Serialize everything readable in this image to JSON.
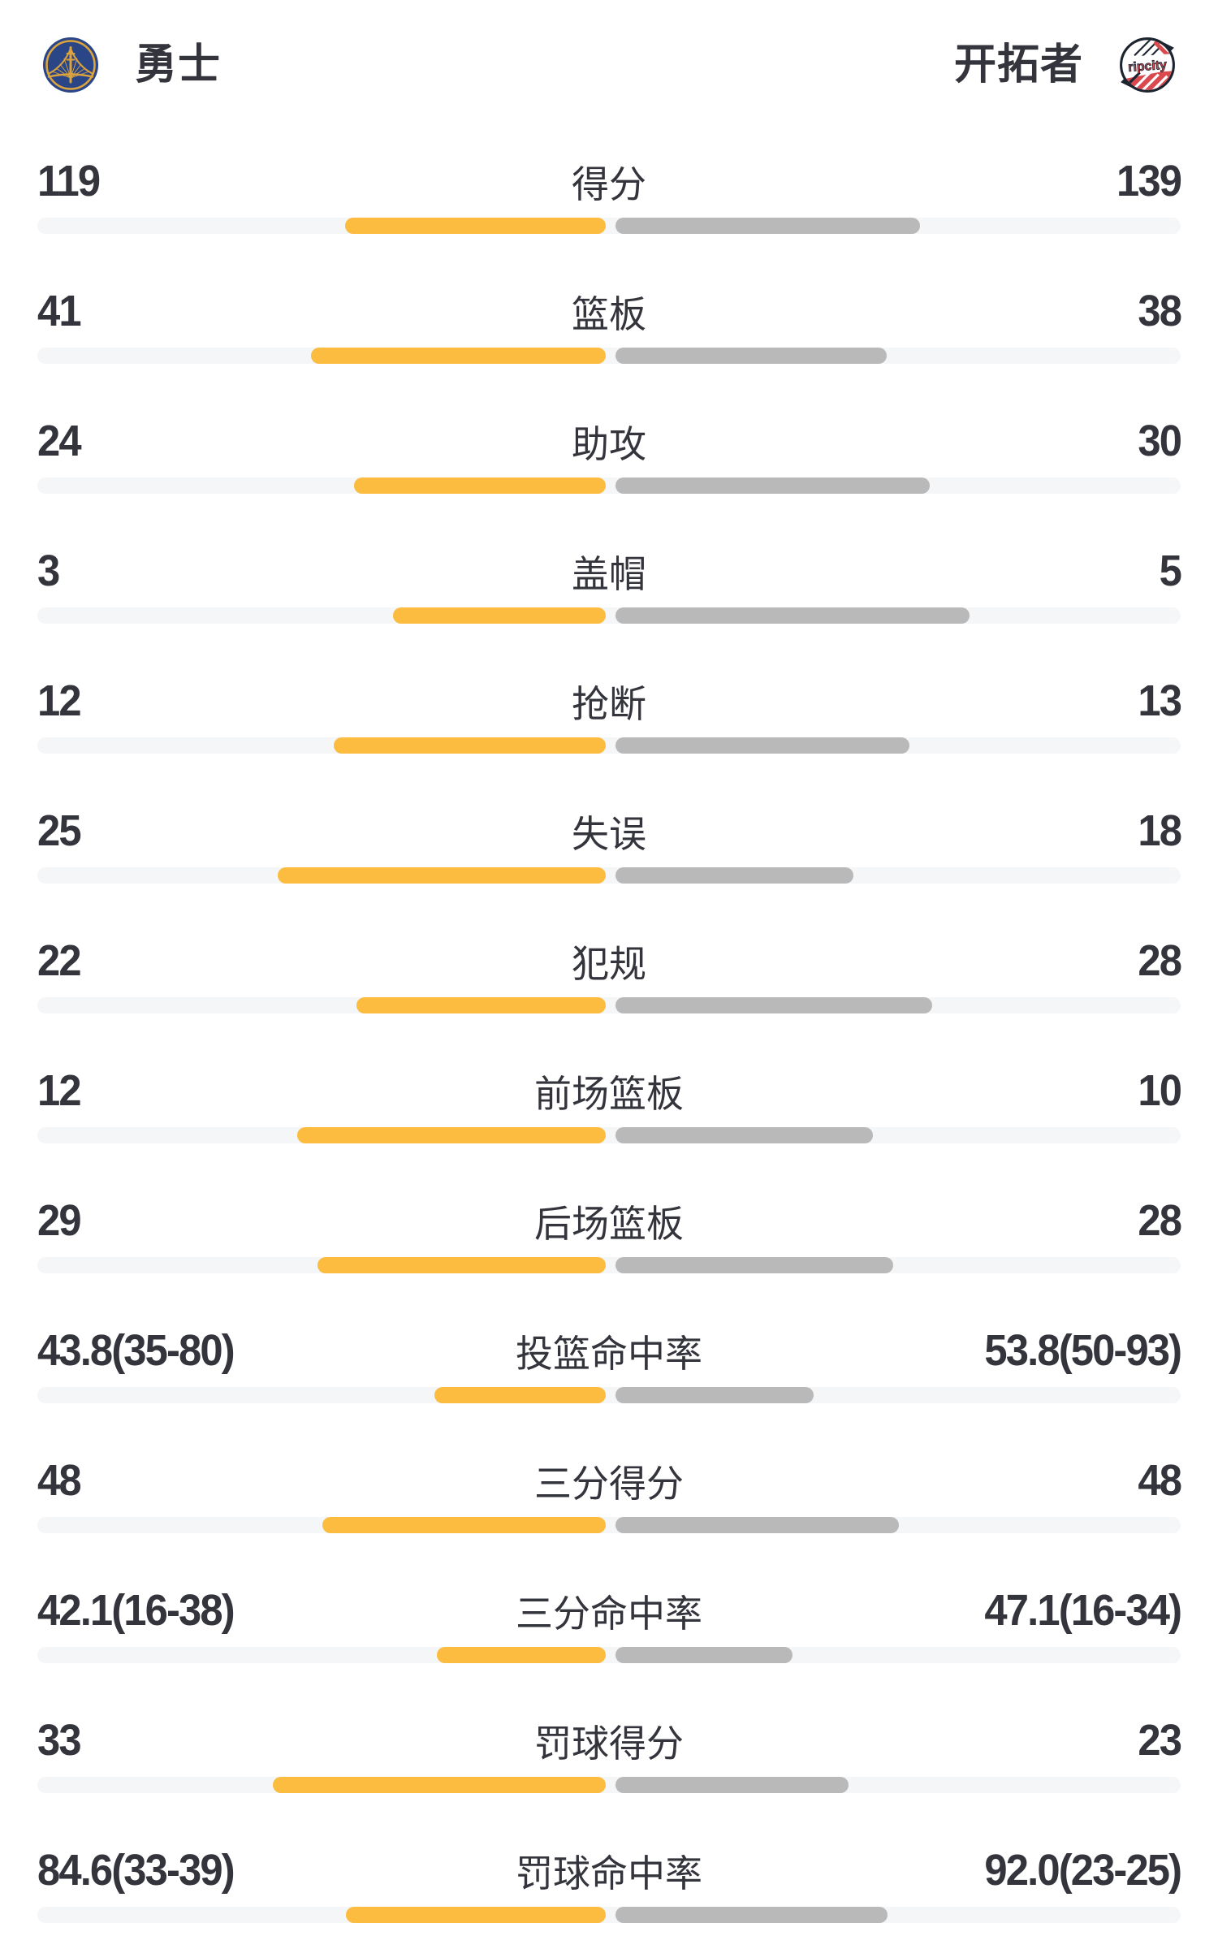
{
  "header": {
    "left_team": {
      "name": "勇士"
    },
    "right_team": {
      "name": "开拓者",
      "logo_text": "ripcity"
    }
  },
  "colors": {
    "text": "#33343c",
    "left_bar": "#fbbc3f",
    "right_bar": "#b9b9b9",
    "track": "#f5f6f8",
    "warriors_navy": "#2a4686",
    "warriors_gold": "#dda43e",
    "blazers_red": "#d9494d",
    "blazers_dark": "#1c2430"
  },
  "chart_data": {
    "type": "bar",
    "orientation": "horizontal-paired",
    "teams": [
      "勇士",
      "开拓者"
    ],
    "legend_position": "none",
    "grid": false,
    "rows": [
      {
        "label": "得分",
        "left": "119",
        "right": "139",
        "left_value": 119,
        "right_value": 139,
        "left_bar_pct": 22.8,
        "right_bar_pct": 26.6
      },
      {
        "label": "篮板",
        "left": "41",
        "right": "38",
        "left_value": 41,
        "right_value": 38,
        "left_bar_pct": 25.8,
        "right_bar_pct": 23.7
      },
      {
        "label": "助攻",
        "left": "24",
        "right": "30",
        "left_value": 24,
        "right_value": 30,
        "left_bar_pct": 22.0,
        "right_bar_pct": 27.5
      },
      {
        "label": "盖帽",
        "left": "3",
        "right": "5",
        "left_value": 3,
        "right_value": 5,
        "left_bar_pct": 18.6,
        "right_bar_pct": 31.0
      },
      {
        "label": "抢断",
        "left": "12",
        "right": "13",
        "left_value": 12,
        "right_value": 13,
        "left_bar_pct": 23.8,
        "right_bar_pct": 25.7
      },
      {
        "label": "失误",
        "left": "25",
        "right": "18",
        "left_value": 25,
        "right_value": 18,
        "left_bar_pct": 28.7,
        "right_bar_pct": 20.8
      },
      {
        "label": "犯规",
        "left": "22",
        "right": "28",
        "left_value": 22,
        "right_value": 28,
        "left_bar_pct": 21.8,
        "right_bar_pct": 27.7
      },
      {
        "label": "前场篮板",
        "left": "12",
        "right": "10",
        "left_value": 12,
        "right_value": 10,
        "left_bar_pct": 27.0,
        "right_bar_pct": 22.5
      },
      {
        "label": "后场篮板",
        "left": "29",
        "right": "28",
        "left_value": 29,
        "right_value": 28,
        "left_bar_pct": 25.2,
        "right_bar_pct": 24.3
      },
      {
        "label": "投篮命中率",
        "left": "43.8(35-80)",
        "right": "53.8(50-93)",
        "left_value": 43.8,
        "right_value": 53.8,
        "left_bar_pct": 15.0,
        "right_bar_pct": 17.3
      },
      {
        "label": "三分得分",
        "left": "48",
        "right": "48",
        "left_value": 48,
        "right_value": 48,
        "left_bar_pct": 24.8,
        "right_bar_pct": 24.8
      },
      {
        "label": "三分命中率",
        "left": "42.1(16-38)",
        "right": "47.1(16-34)",
        "left_value": 42.1,
        "right_value": 47.1,
        "left_bar_pct": 14.8,
        "right_bar_pct": 15.5
      },
      {
        "label": "罚球得分",
        "left": "33",
        "right": "23",
        "left_value": 33,
        "right_value": 23,
        "left_bar_pct": 29.1,
        "right_bar_pct": 20.4
      },
      {
        "label": "罚球命中率",
        "left": "84.6(33-39)",
        "right": "92.0(23-25)",
        "left_value": 84.6,
        "right_value": 92.0,
        "left_bar_pct": 22.7,
        "right_bar_pct": 23.8
      }
    ]
  }
}
